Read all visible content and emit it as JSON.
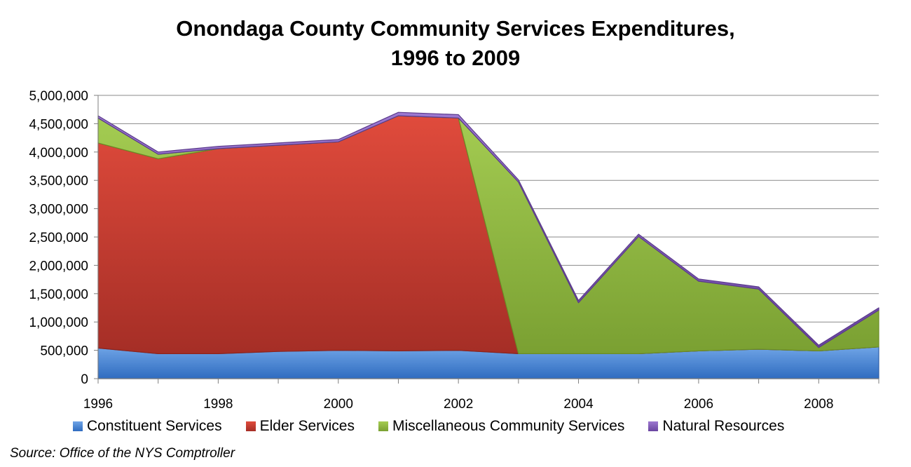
{
  "chart_data": {
    "type": "area",
    "stacked": true,
    "title_line1": "Onondaga County Community Services Expenditures,",
    "title_line2": "1996 to 2009",
    "x": [
      1996,
      1997,
      1998,
      1999,
      2000,
      2001,
      2002,
      2003,
      2004,
      2005,
      2006,
      2007,
      2008,
      2009
    ],
    "x_tick_labels": [
      "1996",
      "1998",
      "2000",
      "2002",
      "2004",
      "2006",
      "2008"
    ],
    "y_tick_labels": [
      "0",
      "500,000",
      "1,000,000",
      "1,500,000",
      "2,000,000",
      "2,500,000",
      "3,000,000",
      "3,500,000",
      "4,000,000",
      "4,500,000",
      "5,000,000"
    ],
    "ylim": [
      0,
      5000000
    ],
    "xlim": [
      1996,
      2009
    ],
    "grid": "horizontal",
    "legend_position": "bottom",
    "series": [
      {
        "name": "Constituent Services",
        "color": "#4A86D4",
        "values": [
          540000,
          440000,
          440000,
          480000,
          500000,
          490000,
          500000,
          440000,
          440000,
          440000,
          490000,
          520000,
          490000,
          560000
        ]
      },
      {
        "name": "Elder Services",
        "color": "#C0392B",
        "values": [
          3620000,
          3440000,
          3620000,
          3640000,
          3680000,
          4150000,
          4100000,
          0,
          0,
          0,
          0,
          0,
          0,
          0
        ]
      },
      {
        "name": "Miscellaneous Community Services",
        "color": "#8DB43E",
        "values": [
          440000,
          80000,
          0,
          0,
          0,
          0,
          0,
          3030000,
          900000,
          2070000,
          1230000,
          1060000,
          60000,
          650000
        ]
      },
      {
        "name": "Natural Resources",
        "color": "#7E57B5",
        "values": [
          40000,
          40000,
          40000,
          40000,
          40000,
          60000,
          60000,
          40000,
          40000,
          40000,
          40000,
          40000,
          40000,
          40000
        ]
      }
    ]
  },
  "source": "Source:  Office of the NYS Comptroller"
}
